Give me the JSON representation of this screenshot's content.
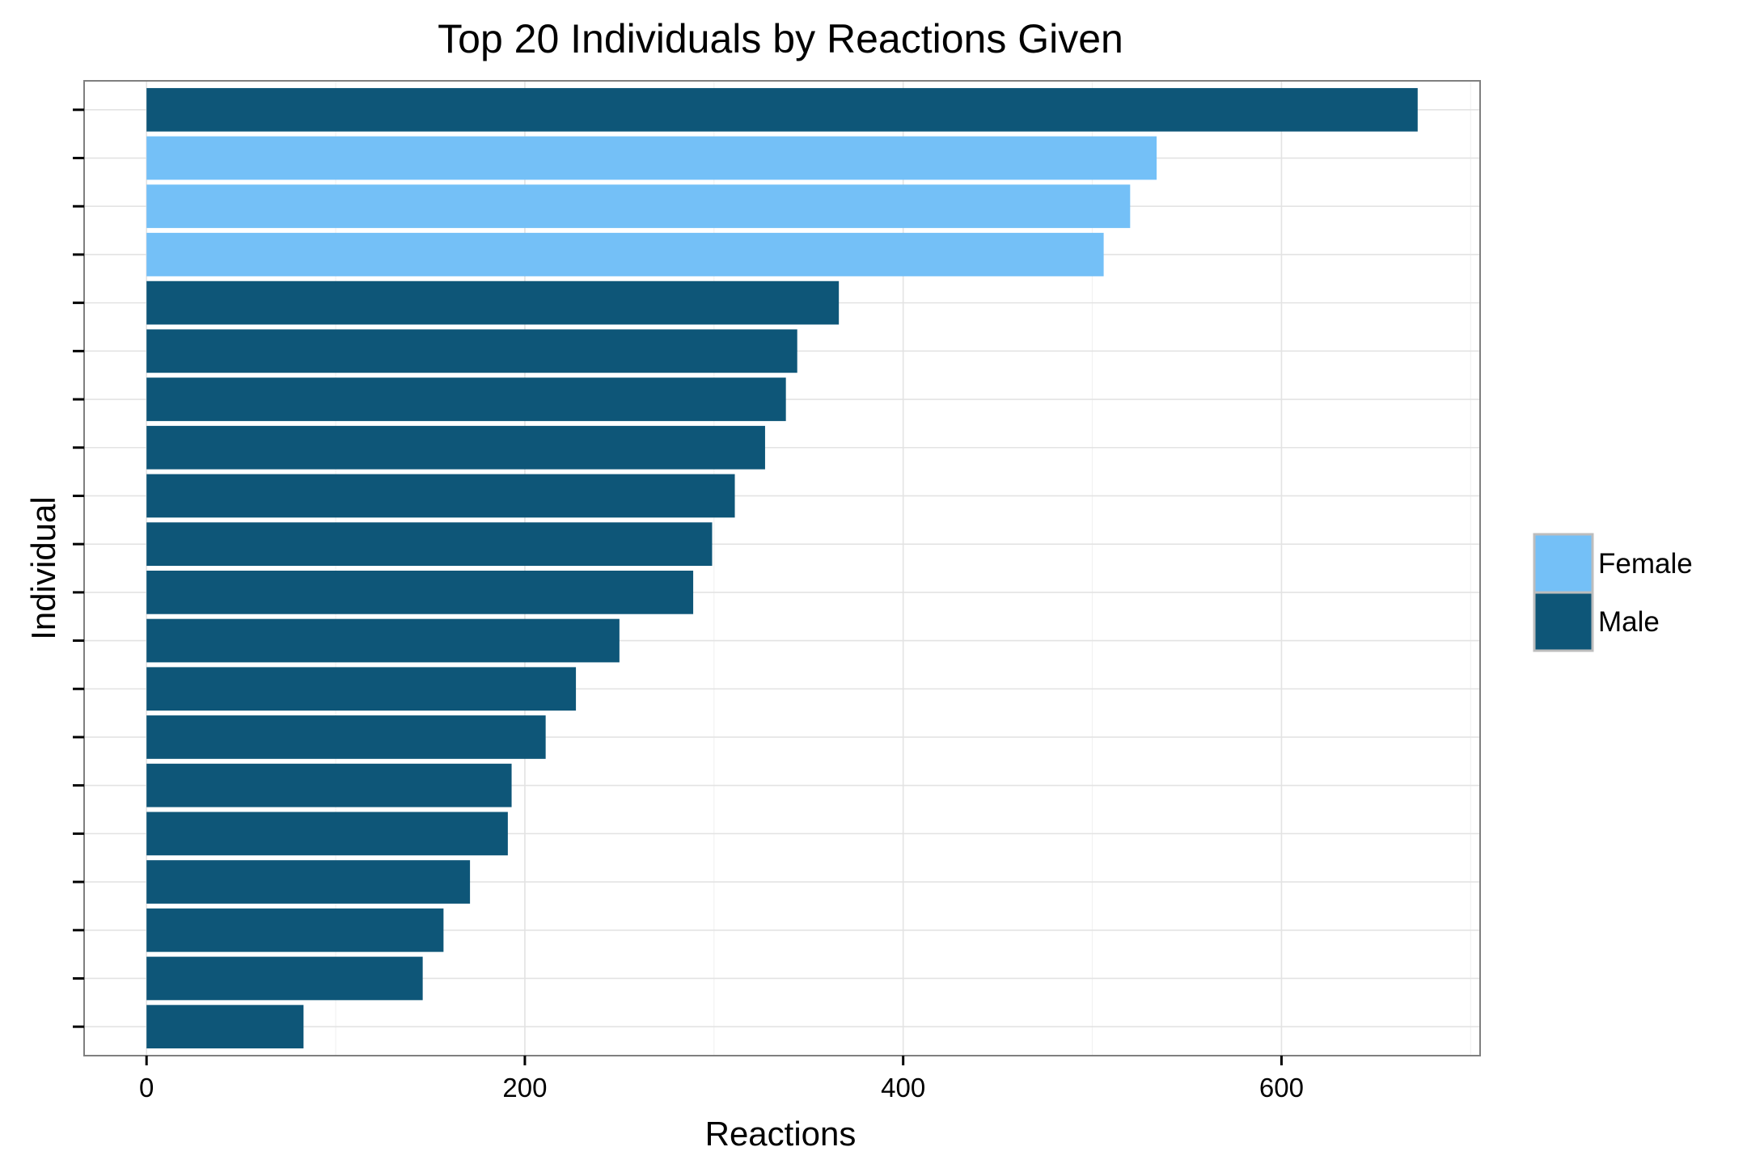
{
  "chart_data": {
    "type": "bar",
    "orientation": "horizontal",
    "title": "Top 20 Individuals by Reactions Given",
    "xlabel": "Reactions",
    "ylabel": "Individual",
    "xlim": [
      -33,
      705
    ],
    "xticks": [
      0,
      200,
      400,
      600
    ],
    "grid": true,
    "legend_position": "right",
    "categories_labeled": false,
    "bars": [
      {
        "value": 672,
        "group": "Male"
      },
      {
        "value": 534,
        "group": "Female"
      },
      {
        "value": 520,
        "group": "Female"
      },
      {
        "value": 506,
        "group": "Female"
      },
      {
        "value": 366,
        "group": "Male"
      },
      {
        "value": 344,
        "group": "Male"
      },
      {
        "value": 338,
        "group": "Male"
      },
      {
        "value": 327,
        "group": "Male"
      },
      {
        "value": 311,
        "group": "Male"
      },
      {
        "value": 299,
        "group": "Male"
      },
      {
        "value": 289,
        "group": "Male"
      },
      {
        "value": 250,
        "group": "Male"
      },
      {
        "value": 227,
        "group": "Male"
      },
      {
        "value": 211,
        "group": "Male"
      },
      {
        "value": 193,
        "group": "Male"
      },
      {
        "value": 191,
        "group": "Male"
      },
      {
        "value": 171,
        "group": "Male"
      },
      {
        "value": 157,
        "group": "Male"
      },
      {
        "value": 146,
        "group": "Male"
      },
      {
        "value": 83,
        "group": "Male"
      }
    ],
    "legend": [
      {
        "label": "Female",
        "color": "#74c0f7"
      },
      {
        "label": "Male",
        "color": "#0e5678"
      }
    ]
  }
}
